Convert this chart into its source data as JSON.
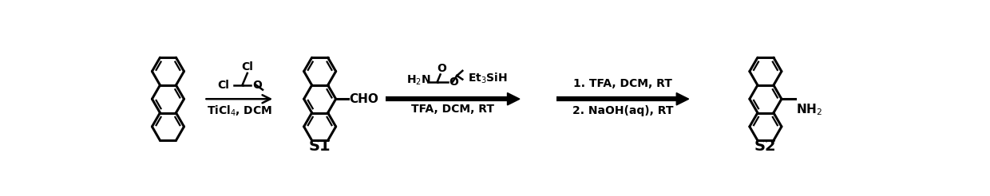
{
  "bg": "#ffffff",
  "lc": "#000000",
  "lw_mol": 2.2,
  "lw_inner": 1.6,
  "r": 26,
  "reagent1_bot": "TiCl$_4$, DCM",
  "reagent2_top1": "H$_2$N",
  "reagent2_top2": "Et$_3$SiH",
  "reagent2_bot": "TFA, DCM, RT",
  "reagent3_top1": "1. TFA, DCM, RT",
  "reagent3_top2": "2. NaOH(aq), RT",
  "label_s1": "S1",
  "label_s2": "S2",
  "cho_label": "CHO",
  "nh2_label": "NH$_2$",
  "ticl4_label": "TiCl$_4$, DCM"
}
